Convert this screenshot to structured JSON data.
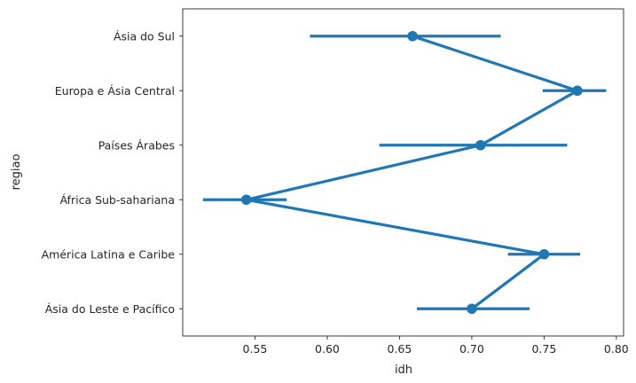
{
  "chart_data": {
    "type": "pointplot",
    "orientation": "horizontal",
    "xlabel": "idh",
    "ylabel": "regiao",
    "xlim": [
      0.5,
      0.805
    ],
    "xticks": [
      0.55,
      0.6,
      0.65,
      0.7,
      0.75,
      0.8
    ],
    "xtick_labels": [
      "0.55",
      "0.60",
      "0.65",
      "0.70",
      "0.75",
      "0.80"
    ],
    "categories": [
      "Ásia do Sul",
      "Europa e Ásia Central",
      "Países Árabes",
      "África Sub-sahariana",
      "América Latina e Caribe",
      "Ásia do Leste e Pacífico"
    ],
    "values": [
      0.659,
      0.773,
      0.706,
      0.544,
      0.75,
      0.7
    ],
    "ci_low": [
      0.588,
      0.749,
      0.636,
      0.514,
      0.725,
      0.662
    ],
    "ci_high": [
      0.72,
      0.793,
      0.766,
      0.572,
      0.775,
      0.74
    ],
    "color": "#1f77b4",
    "grid": false,
    "legend": false
  }
}
